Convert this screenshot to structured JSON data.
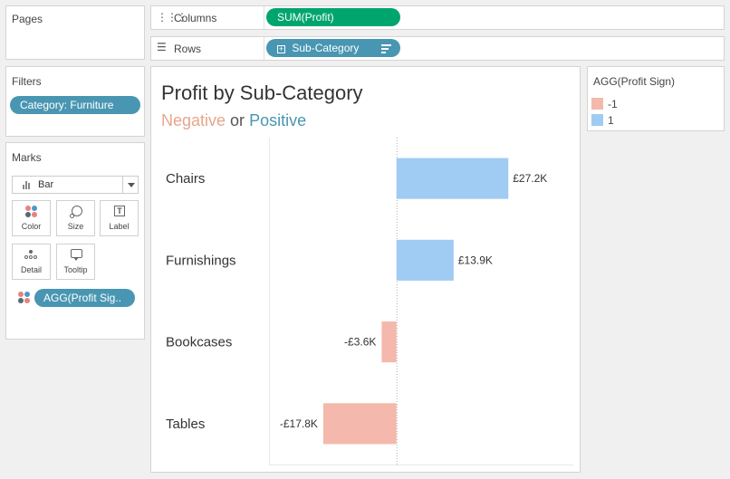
{
  "pages": {
    "title": "Pages"
  },
  "columns_shelf": {
    "label": "Columns",
    "pill": "SUM(Profit)"
  },
  "rows_shelf": {
    "label": "Rows",
    "pill": "Sub-Category"
  },
  "filters": {
    "title": "Filters",
    "pill": "Category: Furniture"
  },
  "marks": {
    "title": "Marks",
    "mark_type": "Bar",
    "buttons": [
      "Color",
      "Size",
      "Label",
      "Detail",
      "Tooltip"
    ],
    "color_pill": "AGG(Profit Sig.."
  },
  "legend": {
    "title": "AGG(Profit Sign)",
    "items": [
      {
        "label": "-1",
        "color": "#f4b9ac"
      },
      {
        "label": "1",
        "color": "#a0cbf3"
      }
    ]
  },
  "colors": {
    "negative_text": "#e8a58c",
    "positive_text": "#4996b2"
  },
  "chart_data": {
    "type": "bar",
    "orientation": "horizontal",
    "title": "Profit by Sub-Category",
    "subtitle_parts": [
      "Negative",
      " or ",
      "Positive"
    ],
    "categories": [
      "Chairs",
      "Furnishings",
      "Bookcases",
      "Tables"
    ],
    "values": [
      27.2,
      13.9,
      -3.6,
      -17.8
    ],
    "value_labels": [
      "£27.2K",
      "£13.9K",
      "-£3.6K",
      "-£17.8K"
    ],
    "value_unit": "£K",
    "xlim": [
      -31,
      43
    ],
    "zero_line": "dotted",
    "grid": false,
    "colors": {
      "negative": "#f4b9ac",
      "positive": "#a0cbf3"
    }
  }
}
